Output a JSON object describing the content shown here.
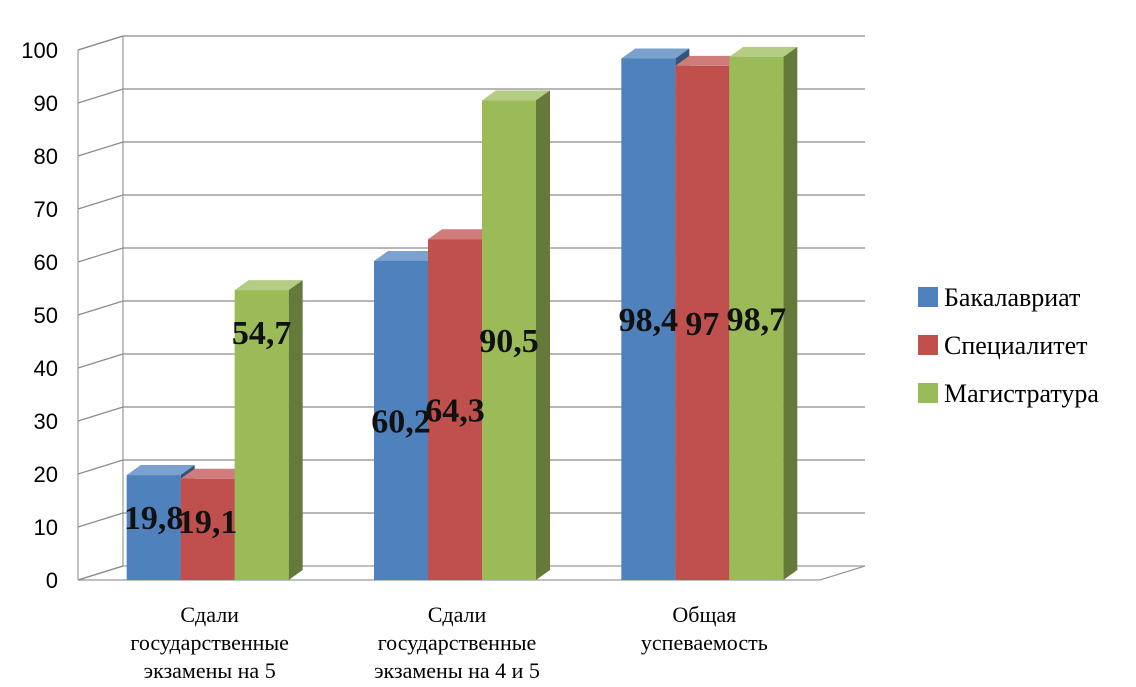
{
  "chart_data": {
    "type": "bar",
    "categories": [
      [
        "Сдали",
        "государственные",
        "экзамены на  5"
      ],
      [
        "Сдали",
        "государственные",
        "экзамены на 4 и 5"
      ],
      [
        "Общая",
        "успеваемость"
      ]
    ],
    "series": [
      {
        "name": "Бакалавриат",
        "color": "#4F81BD",
        "values": [
          19.8,
          60.2,
          98.4
        ],
        "labels": [
          "19,8",
          "60,2",
          "98,4"
        ]
      },
      {
        "name": "Специалитет",
        "color": "#C0504D",
        "values": [
          19.1,
          64.3,
          97
        ],
        "labels": [
          "19,1",
          "64,3",
          "97"
        ]
      },
      {
        "name": "Магистратура",
        "color": "#9BBB59",
        "values": [
          54.7,
          90.5,
          98.7
        ],
        "labels": [
          "54,7",
          "90,5",
          "98,7"
        ]
      }
    ],
    "ylim": [
      0,
      100
    ],
    "yticks": [
      0,
      10,
      20,
      30,
      40,
      50,
      60,
      70,
      80,
      90,
      100
    ],
    "grid": true,
    "legend_position": "right",
    "style": "3d-clustered-column"
  }
}
